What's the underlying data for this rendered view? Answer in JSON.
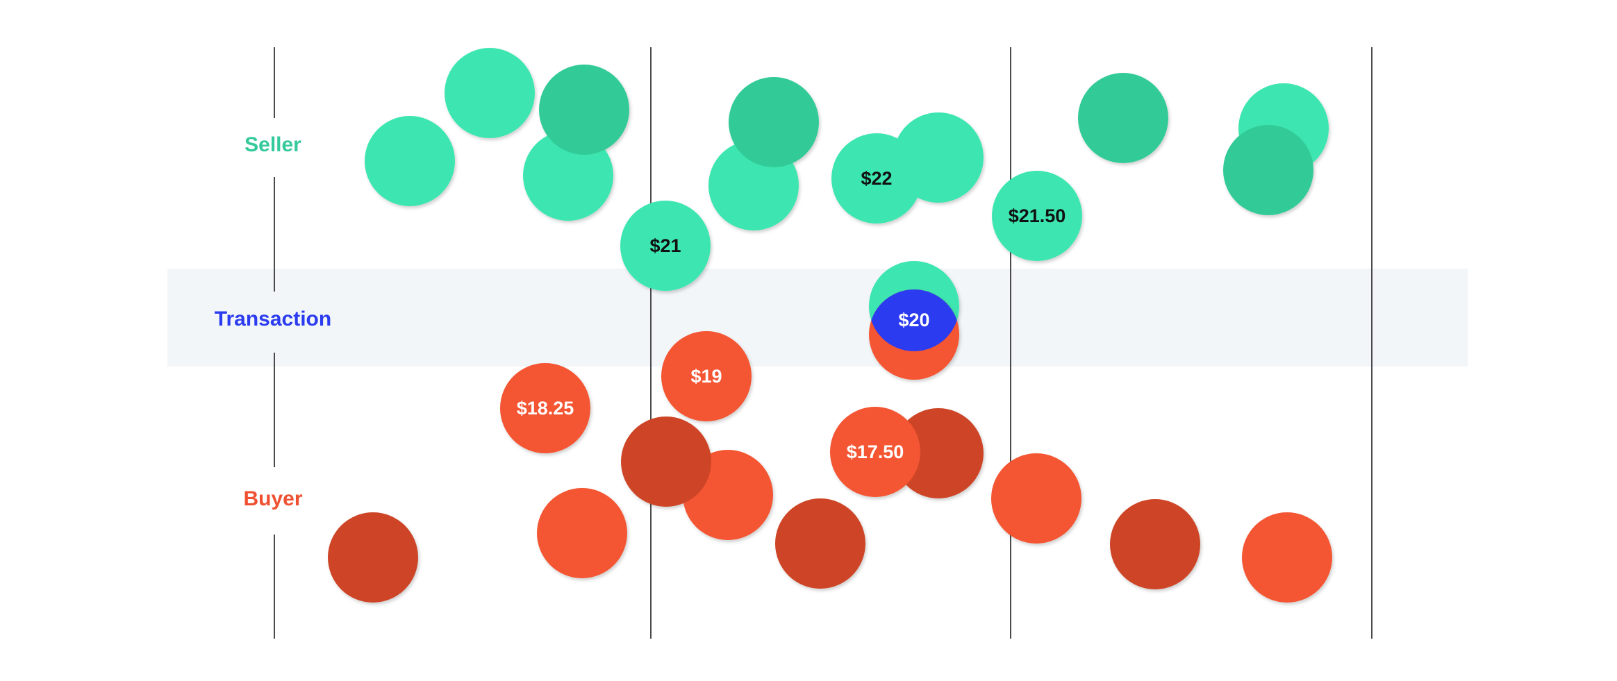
{
  "rows": {
    "seller": {
      "label": "Seller",
      "color": "#34C99B"
    },
    "transaction": {
      "label": "Transaction",
      "color": "#2B3BEF"
    },
    "buyer": {
      "label": "Buyer",
      "color": "#F05032"
    }
  },
  "colors": {
    "seller_light": "#3EE6B0",
    "seller_dark": "#33CB98",
    "buyer_light": "#F45532",
    "buyer_dark": "#CD4426",
    "transaction": "#2B3BEF",
    "band": "#F2F6F9",
    "divider": "#4A4A4A",
    "label_on_green": "#111111",
    "label_on_red": "#FFFFFF"
  },
  "prices": {
    "seller_21": "$21",
    "seller_22": "$22",
    "seller_21_50": "$21.50",
    "transaction_20": "$20",
    "buyer_19": "$19",
    "buyer_18_25": "$18.25",
    "buyer_17_50": "$17.50"
  }
}
